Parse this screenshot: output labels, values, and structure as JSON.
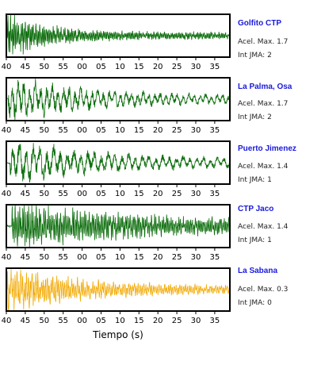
{
  "chart_data": {
    "type": "line",
    "xlabel": "Tiempo (s)",
    "x_range": [
      40,
      99
    ],
    "tick_values": [
      40,
      45,
      50,
      55,
      60,
      65,
      70,
      75,
      80,
      85,
      90,
      95
    ],
    "tick_labels": [
      "40",
      "45",
      "50",
      "55",
      "00",
      "05",
      "10",
      "15",
      "20",
      "25",
      "30",
      "35"
    ],
    "grid": false,
    "series": [
      {
        "name": "Golfito CTP",
        "accel_label": "Acel. Max.",
        "accel_max": "1.7",
        "jma_label": "Int JMA:",
        "jma_value": "2",
        "color": "#0d6e0d",
        "onset_s": 40.0,
        "decay": 0.09,
        "period_s": 0.35
      },
      {
        "name": "La Palma, Osa",
        "accel_label": "Acel. Max.",
        "accel_max": "1.7",
        "jma_label": "Int JMA:",
        "jma_value": "2",
        "color": "#0d6e0d",
        "onset_s": 40.5,
        "decay": 0.045,
        "period_s": 1.5
      },
      {
        "name": "Puerto Jimenez",
        "accel_label": "Acel. Max.",
        "accel_max": "1.4",
        "jma_label": "Int JMA:",
        "jma_value": "1",
        "color": "#0d6e0d",
        "onset_s": 41.0,
        "decay": 0.04,
        "period_s": 1.8
      },
      {
        "name": "CTP Jaco",
        "accel_label": "Acel. Max.",
        "accel_max": "1.4",
        "jma_label": "Int JMA:",
        "jma_value": "1",
        "color": "#0d6e0d",
        "onset_s": 41.5,
        "decay": 0.025,
        "period_s": 0.4
      },
      {
        "name": "La Sabana",
        "accel_label": "Acel. Max.",
        "accel_max": "0.3",
        "jma_label": "Int JMA:",
        "jma_value": "0",
        "color": "#f2a900",
        "onset_s": 40.3,
        "decay": 0.05,
        "period_s": 0.5
      }
    ]
  }
}
